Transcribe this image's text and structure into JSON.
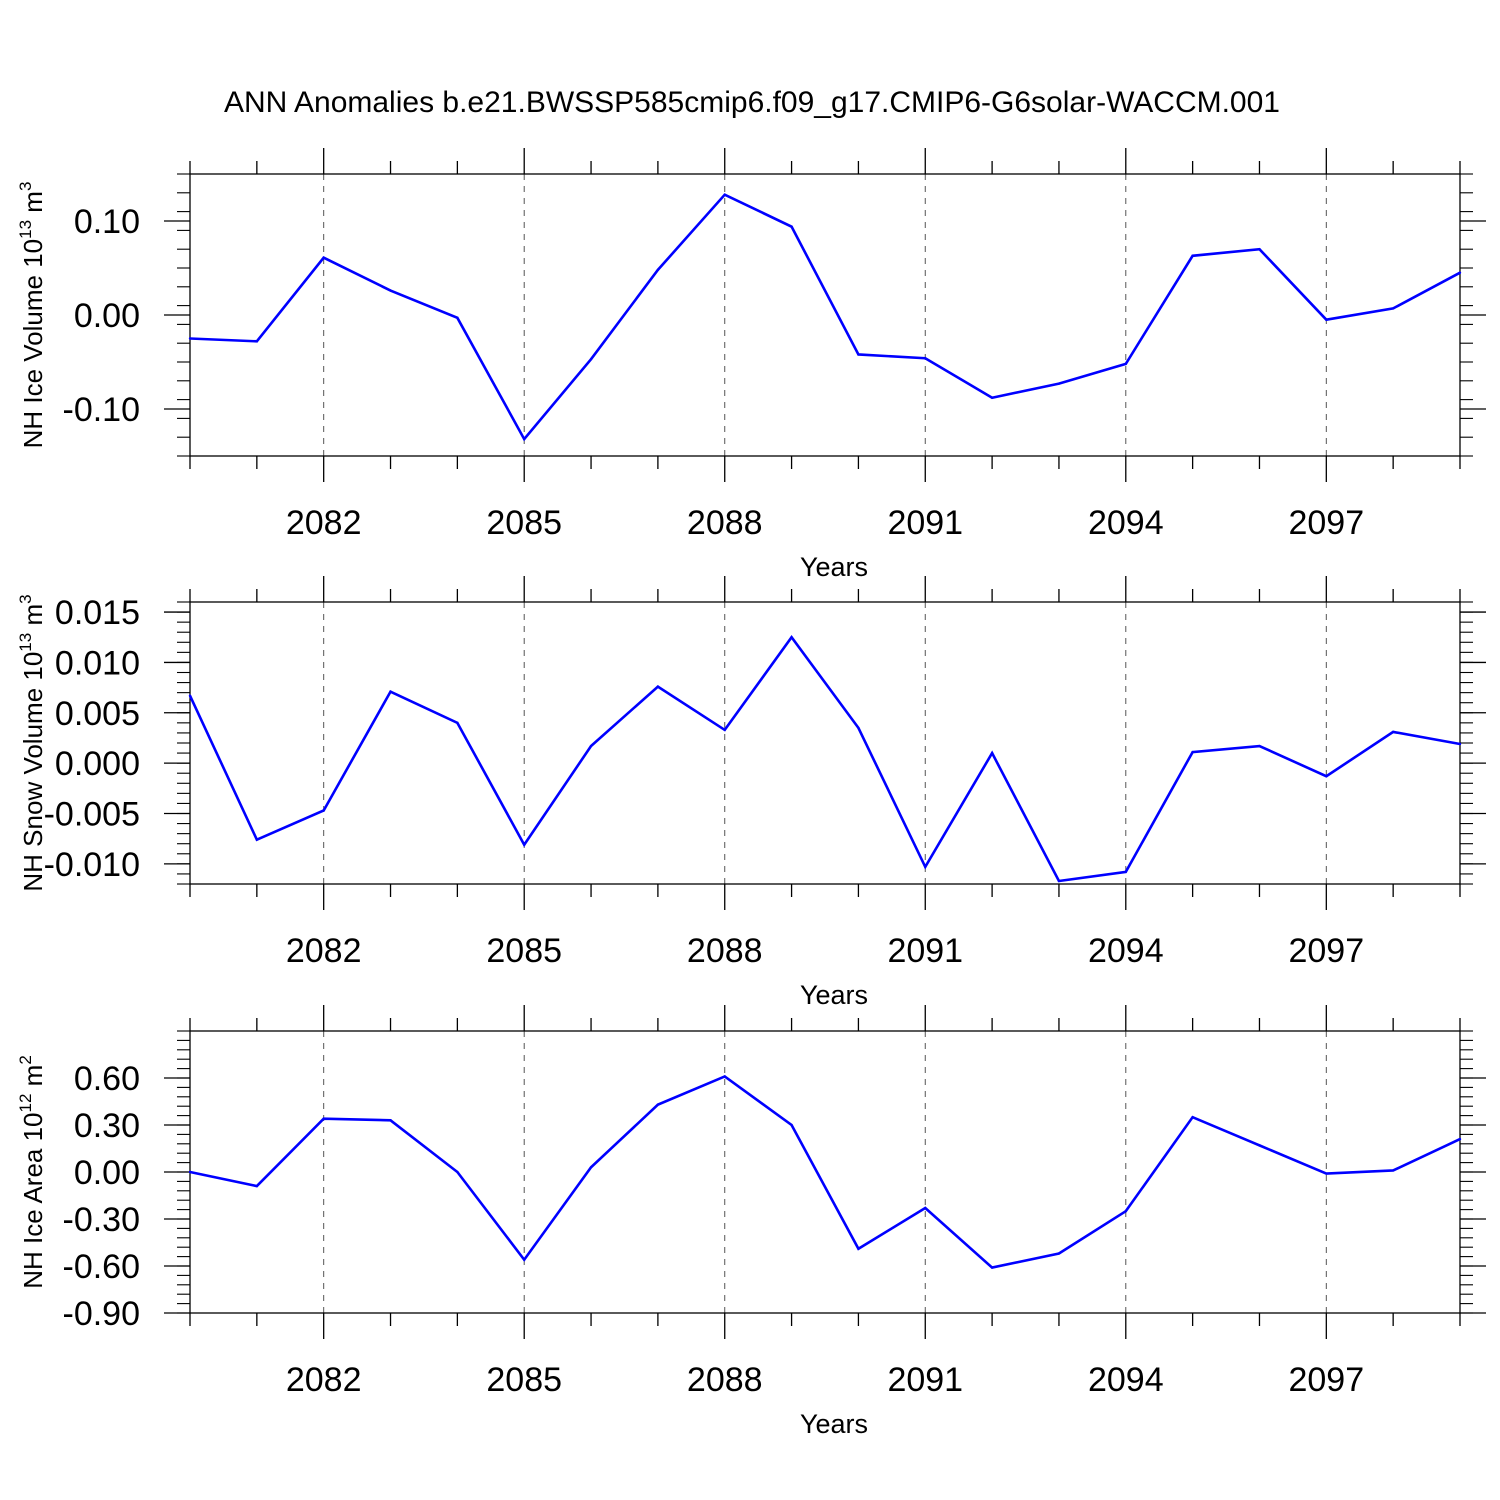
{
  "title": "ANN Anomalies b.e21.BWSSP585cmip6.f09_g17.CMIP6-G6solar-WACCM.001",
  "colors": {
    "line": "#0000ff",
    "axes": "#000000",
    "grid": "#555555",
    "background": "#ffffff"
  },
  "chart_data": [
    {
      "type": "line",
      "xlabel": "Years",
      "ylabel": {
        "main": "NH Ice Volume 10",
        "exp": "13",
        "unit": " m",
        "unit_exp": "3"
      },
      "x": [
        2080,
        2081,
        2082,
        2083,
        2084,
        2085,
        2086,
        2087,
        2088,
        2089,
        2090,
        2091,
        2092,
        2093,
        2094,
        2095,
        2096,
        2097,
        2098,
        2099
      ],
      "series": [
        {
          "values": [
            -0.025,
            -0.028,
            0.061,
            0.026,
            -0.003,
            -0.132,
            -0.047,
            0.048,
            0.128,
            0.094,
            -0.042,
            -0.046,
            -0.088,
            -0.073,
            -0.052,
            0.063,
            0.07,
            -0.005,
            0.007,
            0.045
          ],
          "color": "#0000ff"
        }
      ],
      "xlim": [
        2080,
        2099
      ],
      "ylim": [
        -0.15,
        0.15
      ],
      "xticks": [
        2082,
        2085,
        2088,
        2091,
        2094,
        2097
      ],
      "xtick_labels": [
        "2082",
        "2085",
        "2088",
        "2091",
        "2094",
        "2097"
      ],
      "yticks": [
        -0.1,
        0.0,
        0.1
      ],
      "ytick_labels": [
        "-0.10",
        "0.00",
        "0.10"
      ],
      "yminor_step": 0.02,
      "grid": "x-dashed"
    },
    {
      "type": "line",
      "xlabel": "Years",
      "ylabel": {
        "main": "NH Snow Volume 10",
        "exp": "13",
        "unit": " m",
        "unit_exp": "3"
      },
      "x": [
        2080,
        2081,
        2082,
        2083,
        2084,
        2085,
        2086,
        2087,
        2088,
        2089,
        2090,
        2091,
        2092,
        2093,
        2094,
        2095,
        2096,
        2097,
        2098,
        2099
      ],
      "series": [
        {
          "values": [
            0.0067,
            -0.0076,
            -0.0047,
            0.0071,
            0.004,
            -0.0081,
            0.0017,
            0.0076,
            0.0033,
            0.0125,
            0.0035,
            -0.0103,
            0.001,
            -0.0117,
            -0.0108,
            0.0011,
            0.0017,
            -0.0013,
            0.0031,
            0.0019
          ],
          "color": "#0000ff"
        }
      ],
      "xlim": [
        2080,
        2099
      ],
      "ylim": [
        -0.012,
        0.016
      ],
      "xticks": [
        2082,
        2085,
        2088,
        2091,
        2094,
        2097
      ],
      "xtick_labels": [
        "2082",
        "2085",
        "2088",
        "2091",
        "2094",
        "2097"
      ],
      "yticks": [
        -0.01,
        -0.005,
        0.0,
        0.005,
        0.01,
        0.015
      ],
      "ytick_labels": [
        "-0.010",
        "-0.005",
        "0.000",
        "0.005",
        "0.010",
        "0.015"
      ],
      "yminor_step": 0.001,
      "grid": "x-dashed"
    },
    {
      "type": "line",
      "xlabel": "Years",
      "ylabel": {
        "main": "NH Ice Area 10",
        "exp": "12",
        "unit": " m",
        "unit_exp": "2"
      },
      "x": [
        2080,
        2081,
        2082,
        2083,
        2084,
        2085,
        2086,
        2087,
        2088,
        2089,
        2090,
        2091,
        2092,
        2093,
        2094,
        2095,
        2096,
        2097,
        2098,
        2099
      ],
      "series": [
        {
          "values": [
            0.0,
            -0.09,
            0.34,
            0.33,
            0.0,
            -0.56,
            0.03,
            0.43,
            0.61,
            0.3,
            -0.49,
            -0.23,
            -0.61,
            -0.52,
            -0.25,
            0.35,
            0.17,
            -0.01,
            0.01,
            0.21
          ],
          "color": "#0000ff"
        }
      ],
      "xlim": [
        2080,
        2099
      ],
      "ylim": [
        -0.9,
        0.9
      ],
      "xticks": [
        2082,
        2085,
        2088,
        2091,
        2094,
        2097
      ],
      "xtick_labels": [
        "2082",
        "2085",
        "2088",
        "2091",
        "2094",
        "2097"
      ],
      "yticks": [
        -0.9,
        -0.6,
        -0.3,
        0.0,
        0.3,
        0.6
      ],
      "ytick_labels": [
        "-0.90",
        "-0.60",
        "-0.30",
        "0.00",
        "0.30",
        "0.60"
      ],
      "yminor_step": 0.06,
      "grid": "x-dashed"
    }
  ]
}
